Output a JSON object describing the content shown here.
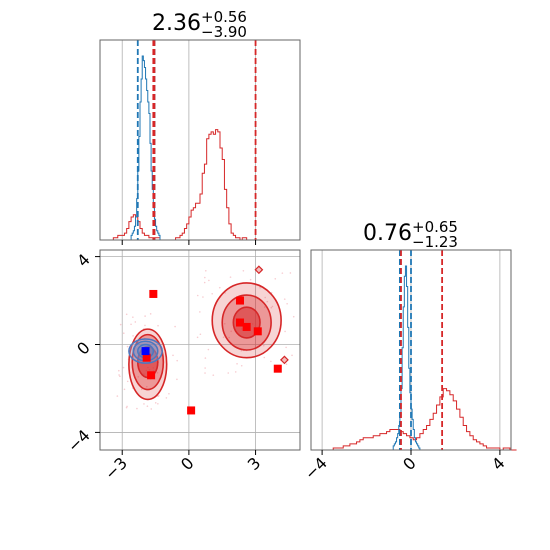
{
  "chart_data": {
    "type": "corner",
    "grid": true,
    "colors": {
      "blue": "#1f77b4",
      "red": "#d62728",
      "marker_red": "#ff0000",
      "marker_blue": "#0000ff"
    },
    "param1": {
      "title": {
        "main": "2.36",
        "upper": "+0.56",
        "lower": "−3.90"
      },
      "xlim": [
        -4,
        5
      ],
      "ticks": [
        -3,
        0,
        3
      ],
      "tick_labels": [
        "−3",
        "0",
        "3"
      ],
      "quantiles_blue": [
        -2.3,
        -1.55
      ],
      "quantiles_red": [
        -1.6,
        -1.55,
        3.0
      ],
      "hist_blue": {
        "x0": -2.6,
        "bin": 0.05,
        "counts": [
          2,
          3,
          4,
          6,
          10,
          18,
          30,
          45,
          60,
          70,
          80,
          78,
          75,
          70,
          65,
          60,
          55,
          42,
          30,
          22,
          14,
          9,
          6,
          4,
          3,
          2
        ]
      },
      "hist_red": {
        "x0": -3.4,
        "bin": 0.1,
        "counts": [
          1,
          1,
          2,
          2,
          2,
          3,
          5,
          8,
          10,
          11,
          10,
          8,
          5,
          3,
          2,
          2,
          1,
          1,
          1,
          1,
          1,
          0,
          0,
          0,
          0,
          0,
          0,
          0,
          1,
          1,
          2,
          3,
          5,
          7,
          10,
          13,
          14,
          16,
          16,
          20,
          29,
          33,
          44,
          46,
          47,
          46,
          48,
          47,
          40,
          35,
          22,
          14,
          7,
          3,
          2,
          1,
          1,
          0,
          1,
          1,
          0,
          0,
          0,
          0,
          0,
          0,
          0,
          0,
          0,
          0,
          0,
          0,
          0,
          0,
          0,
          0,
          0
        ]
      }
    },
    "param2": {
      "title": {
        "main": "0.76",
        "upper": "+0.65",
        "lower": "−1.23"
      },
      "xlim": [
        -4.5,
        4.5
      ],
      "ticks": [
        -4,
        0,
        4
      ],
      "tick_labels": [
        "−4",
        "0",
        "4"
      ],
      "quantiles_blue": [
        -0.5,
        0.0
      ],
      "quantiles_red": [
        -0.45,
        1.4
      ],
      "hist_blue": {
        "x0": -0.8,
        "bin": 0.05,
        "counts": [
          2,
          3,
          4,
          6,
          8,
          12,
          18,
          30,
          50,
          70,
          85,
          90,
          80,
          60,
          40,
          28,
          20,
          15,
          10,
          6,
          4,
          3,
          2,
          1
        ]
      },
      "hist_red": {
        "x0": -3.5,
        "bin": 0.15,
        "counts": [
          1,
          1,
          1,
          2,
          2,
          3,
          3,
          4,
          5,
          6,
          6,
          6,
          7,
          7,
          8,
          8,
          9,
          10,
          10,
          10,
          9,
          8,
          7,
          6,
          5,
          6,
          8,
          10,
          12,
          15,
          18,
          22,
          26,
          30,
          29,
          27,
          24,
          20,
          16,
          12,
          9,
          7,
          5,
          4,
          3,
          2,
          1,
          1,
          1,
          1,
          0,
          1,
          1,
          0,
          0,
          0
        ]
      }
    },
    "scatter": {
      "ylim": [
        -4.8,
        4.3
      ],
      "yticks": [
        -4,
        0,
        4
      ],
      "ytick_labels": [
        "−4",
        "0",
        "4"
      ],
      "red_squares": [
        {
          "x": -1.6,
          "y": 2.3
        },
        {
          "x": -1.9,
          "y": -0.6
        },
        {
          "x": -1.7,
          "y": -1.4
        },
        {
          "x": 0.1,
          "y": -3.0
        },
        {
          "x": 2.3,
          "y": 2.0
        },
        {
          "x": 2.3,
          "y": 1.0
        },
        {
          "x": 2.6,
          "y": 0.8
        },
        {
          "x": 3.1,
          "y": 0.6
        },
        {
          "x": 4.0,
          "y": -1.1
        }
      ],
      "blue_squares": [
        {
          "x": -1.95,
          "y": -0.3
        }
      ],
      "blue_contours": [
        {
          "cx": -1.95,
          "cy": -0.3,
          "rx": 0.35,
          "ry": 0.3
        },
        {
          "cx": -1.95,
          "cy": -0.3,
          "rx": 0.55,
          "ry": 0.45
        },
        {
          "cx": -1.95,
          "cy": -0.3,
          "rx": 0.75,
          "ry": 0.55
        }
      ],
      "red_contours": [
        {
          "cx": -1.85,
          "cy": -0.8,
          "rx": 0.45,
          "ry": 0.7
        },
        {
          "cx": -1.85,
          "cy": -0.8,
          "rx": 0.7,
          "ry": 1.25
        },
        {
          "cx": -1.85,
          "cy": -0.9,
          "rx": 0.85,
          "ry": 1.6
        },
        {
          "cx": 2.6,
          "cy": 1.0,
          "rx": 0.6,
          "ry": 0.7
        },
        {
          "cx": 2.6,
          "cy": 1.0,
          "rx": 1.1,
          "ry": 1.25
        },
        {
          "cx": 2.6,
          "cy": 1.1,
          "rx": 1.55,
          "ry": 1.7
        }
      ],
      "red_islands": [
        {
          "x": 3.15,
          "y": 3.4
        },
        {
          "x": 4.3,
          "y": -0.7
        }
      ]
    }
  }
}
